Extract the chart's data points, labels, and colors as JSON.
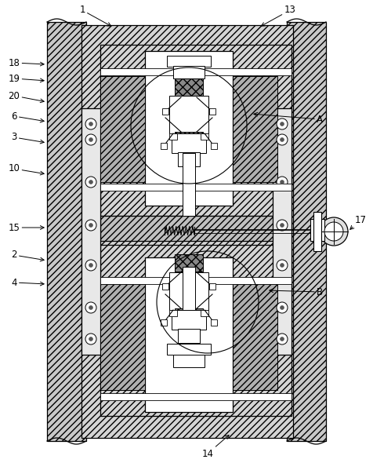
{
  "bg_color": "#ffffff",
  "lc": "#000000",
  "figsize": [
    4.76,
    5.9
  ],
  "dpi": 100
}
